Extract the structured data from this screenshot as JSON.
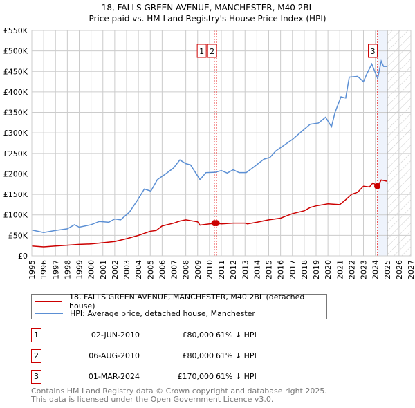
{
  "chart_data": {
    "type": "line",
    "title": "18, FALLS GREEN AVENUE, MANCHESTER, M40 2BL",
    "subtitle": "Price paid vs. HM Land Registry's House Price Index (HPI)",
    "xlim": [
      1995,
      2027
    ],
    "ylim": [
      0,
      550000
    ],
    "yticks": [
      0,
      50000,
      100000,
      150000,
      200000,
      250000,
      300000,
      350000,
      400000,
      450000,
      500000,
      550000
    ],
    "ytick_labels": [
      "£0",
      "£50K",
      "£100K",
      "£150K",
      "£200K",
      "£250K",
      "£300K",
      "£350K",
      "£400K",
      "£450K",
      "£500K",
      "£550K"
    ],
    "xticks": [
      1995,
      1996,
      1997,
      1998,
      1999,
      2000,
      2001,
      2002,
      2003,
      2004,
      2005,
      2006,
      2007,
      2008,
      2009,
      2010,
      2011,
      2012,
      2013,
      2014,
      2015,
      2016,
      2017,
      2018,
      2019,
      2020,
      2021,
      2022,
      2023,
      2024,
      2025,
      2026,
      2027
    ],
    "grid": true,
    "shaded_region": [
      2024.17,
      2025.0
    ],
    "hatched_region": [
      2025.0,
      2027
    ],
    "series": [
      {
        "name": "18, FALLS GREEN AVENUE, MANCHESTER, M40 2BL (detached house)",
        "color": "#cc0000",
        "x": [
          1995,
          1996,
          1997,
          1998,
          1999,
          2000,
          2001,
          2002,
          2003,
          2004,
          2005,
          2005.5,
          2006,
          2007,
          2007.5,
          2008,
          2009,
          2009.2,
          2010,
          2010.6,
          2011,
          2012,
          2013,
          2013.2,
          2014,
          2015,
          2016,
          2017,
          2018,
          2018.5,
          2019,
          2020,
          2021,
          2021.5,
          2022,
          2022.5,
          2023,
          2023.5,
          2023.8,
          2024.2,
          2024.5,
          2025
        ],
        "y": [
          24000,
          22000,
          24000,
          26000,
          28000,
          29000,
          32000,
          35000,
          42000,
          50000,
          60000,
          62000,
          73000,
          80000,
          85000,
          88000,
          83000,
          75000,
          78000,
          80000,
          78000,
          80000,
          80000,
          78000,
          82000,
          88000,
          92000,
          103000,
          110000,
          118000,
          122000,
          127000,
          125000,
          137000,
          150000,
          155000,
          170000,
          168000,
          178000,
          170000,
          185000,
          182000
        ]
      },
      {
        "name": "HPI: Average price, detached house, Manchester",
        "color": "#5b8fd4",
        "x": [
          1995,
          1996,
          1997,
          1998,
          1998.6,
          1999,
          2000,
          2000.7,
          2001.5,
          2002,
          2002.5,
          2003.25,
          2003.9,
          2004.5,
          2005.05,
          2005.6,
          2006.3,
          2006.95,
          2007.5,
          2008,
          2008.4,
          2009.2,
          2009.7,
          2010.5,
          2011,
          2011.5,
          2012,
          2012.5,
          2013.1,
          2013.75,
          2014.6,
          2015.1,
          2015.6,
          2016.3,
          2017,
          2017.8,
          2018.5,
          2019.2,
          2019.8,
          2020.3,
          2020.6,
          2021.1,
          2021.5,
          2021.8,
          2022.5,
          2023,
          2023.3,
          2023.7,
          2024.2,
          2024.5,
          2024.7,
          2025
        ],
        "y": [
          63000,
          57000,
          62000,
          66000,
          76000,
          70000,
          76000,
          84000,
          82000,
          90000,
          88000,
          107000,
          135000,
          163000,
          158000,
          186000,
          200000,
          214000,
          234000,
          225000,
          222000,
          186000,
          203000,
          204000,
          208000,
          202000,
          210000,
          203000,
          203000,
          217000,
          236000,
          240000,
          256000,
          270000,
          284000,
          304000,
          321000,
          324000,
          338000,
          315000,
          350000,
          388000,
          385000,
          436000,
          438000,
          425000,
          445000,
          468000,
          433000,
          475000,
          462000,
          462000
        ]
      }
    ],
    "annotations": [
      {
        "label": "1",
        "x": 2010.42,
        "y": 80000
      },
      {
        "label": "2",
        "x": 2010.6,
        "y": 80000
      },
      {
        "label": "3",
        "x": 2024.17,
        "y": 170000
      }
    ]
  },
  "table": [
    {
      "num": "1",
      "date": "02-JUN-2010",
      "price": "£80,000",
      "hpi": "61% ↓ HPI"
    },
    {
      "num": "2",
      "date": "06-AUG-2010",
      "price": "£80,000",
      "hpi": "61% ↓ HPI"
    },
    {
      "num": "3",
      "date": "01-MAR-2024",
      "price": "£170,000",
      "hpi": "61% ↓ HPI"
    }
  ],
  "footer": {
    "line1": "Contains HM Land Registry data © Crown copyright and database right 2025.",
    "line2": "This data is licensed under the Open Government Licence v3.0."
  }
}
